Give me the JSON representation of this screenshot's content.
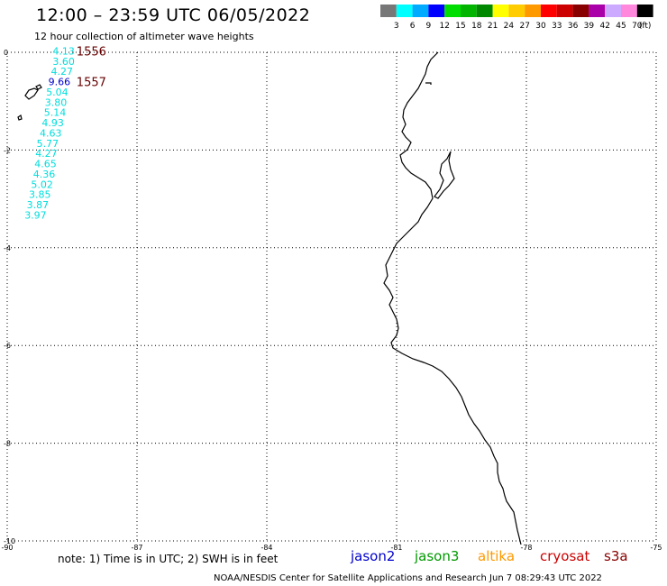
{
  "header": {
    "title": "12:00 – 23:59 UTC 06/05/2022",
    "subtitle": "12 hour collection of altimeter wave heights"
  },
  "scale": {
    "colors": [
      "#777777",
      "#00ffff",
      "#00aaff",
      "#0000ff",
      "#00dd00",
      "#00b400",
      "#008800",
      "#ffff00",
      "#ffcc00",
      "#ff9900",
      "#ff0000",
      "#cc0000",
      "#880000",
      "#aa00aa",
      "#ccaaff",
      "#ff88dd",
      "#000000"
    ],
    "labels": [
      "3",
      "6",
      "9",
      "12",
      "15",
      "18",
      "21",
      "24",
      "27",
      "30",
      "33",
      "36",
      "39",
      "42",
      "45",
      "70"
    ],
    "unit": "(ft)"
  },
  "axes": {
    "x_ticks": [
      "-90",
      "-87",
      "-84",
      "-81",
      "-78",
      "-75"
    ],
    "y_ticks": [
      "0",
      "-2",
      "-4",
      "-6",
      "-8",
      "-10"
    ]
  },
  "chart_data": {
    "type": "scatter",
    "xlim": [
      -90,
      -75
    ],
    "ylim": [
      -10,
      0
    ],
    "grid": true,
    "points": [
      {
        "lon": -88.95,
        "lat": 0.03,
        "swh": 4.13,
        "color": "#00dddd"
      },
      {
        "lon": -88.95,
        "lat": -0.18,
        "swh": 3.6,
        "color": "#00dddd"
      },
      {
        "lon": -88.99,
        "lat": -0.39,
        "swh": 4.27,
        "color": "#00dddd"
      },
      {
        "lon": -89.05,
        "lat": -0.6,
        "swh": 9.66,
        "color": "#0000cc"
      },
      {
        "lon": -89.1,
        "lat": -0.81,
        "swh": 5.04,
        "color": "#00dddd"
      },
      {
        "lon": -89.13,
        "lat": -1.02,
        "swh": 3.8,
        "color": "#00dddd"
      },
      {
        "lon": -89.15,
        "lat": -1.23,
        "swh": 5.14,
        "color": "#00dddd"
      },
      {
        "lon": -89.2,
        "lat": -1.44,
        "swh": 4.93,
        "color": "#00dddd"
      },
      {
        "lon": -89.25,
        "lat": -1.65,
        "swh": 4.63,
        "color": "#00dddd"
      },
      {
        "lon": -89.32,
        "lat": -1.86,
        "swh": 5.77,
        "color": "#00dddd"
      },
      {
        "lon": -89.35,
        "lat": -2.07,
        "swh": 4.27,
        "color": "#00dddd"
      },
      {
        "lon": -89.37,
        "lat": -2.28,
        "swh": 4.65,
        "color": "#00dddd"
      },
      {
        "lon": -89.4,
        "lat": -2.49,
        "swh": 4.36,
        "color": "#00dddd"
      },
      {
        "lon": -89.45,
        "lat": -2.7,
        "swh": 5.02,
        "color": "#00dddd"
      },
      {
        "lon": -89.5,
        "lat": -2.91,
        "swh": 3.85,
        "color": "#00dddd"
      },
      {
        "lon": -89.55,
        "lat": -3.12,
        "swh": 3.87,
        "color": "#00dddd"
      },
      {
        "lon": -89.6,
        "lat": -3.33,
        "swh": 3.97,
        "color": "#00dddd"
      }
    ],
    "time_labels": [
      {
        "lon": -88.4,
        "lat": 0.03,
        "text": "1556",
        "color": "#660000"
      },
      {
        "lon": -88.4,
        "lat": -0.6,
        "text": "1557",
        "color": "#660000"
      }
    ]
  },
  "note": "note: 1) Time is in UTC; 2) SWH is in feet",
  "satellites": [
    {
      "name": "jason2",
      "color": "#0000cc"
    },
    {
      "name": "jason3",
      "color": "#009900"
    },
    {
      "name": "altika",
      "color": "#ff9900"
    },
    {
      "name": "cryosat",
      "color": "#cc0000"
    },
    {
      "name": "s3a",
      "color": "#880000"
    }
  ],
  "footer": "NOAA/NESDIS Center for Satellite Applications and Research   Jun  7 08:29:43 UTC 2022"
}
